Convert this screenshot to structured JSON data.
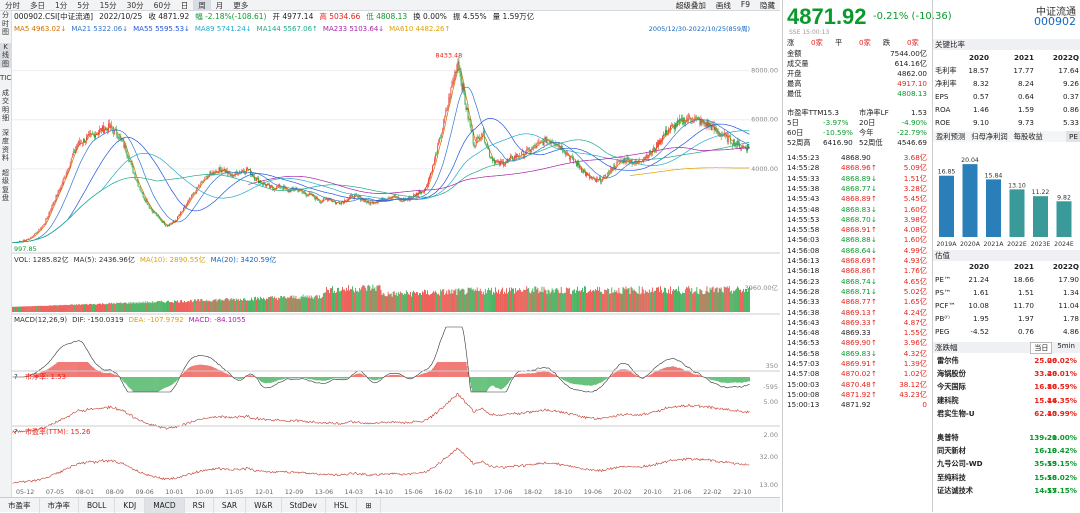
{
  "toolbar": {
    "periods": [
      "分时",
      "多日",
      "1分",
      "5分",
      "15分",
      "30分",
      "60分",
      "日",
      "周",
      "月",
      "更多"
    ],
    "active": "周",
    "right": [
      "超级叠加",
      "画线",
      "F9",
      "隐藏"
    ]
  },
  "leftstrip": [
    "分时图",
    "K线图",
    "TICK",
    "成交明细",
    "深度资料",
    "超级复盘"
  ],
  "info": {
    "code": "000902.CSI[中证流通]",
    "date": "2022/10/25",
    "close": "收 4871.92",
    "chg": "幅 -2.18%(-108.61)",
    "open": "开 4977.14",
    "high": "高 5034.66",
    "low": "低 4808.13",
    "turnover": "换 0.00%",
    "amp": "振 4.55%",
    "vol": "量 1.59万亿"
  },
  "ma_legend": [
    {
      "t": "MA5 4963.02↓",
      "c": "#d07000"
    },
    {
      "t": "MA21 5322.06↓",
      "c": "#3377cc"
    },
    {
      "t": "MA55 5595.53↓",
      "c": "#2255dd"
    },
    {
      "t": "MA89 5741.24↓",
      "c": "#22aacc"
    },
    {
      "t": "MA144 5567.06↑",
      "c": "#22aa88"
    },
    {
      "t": "MA233 5103.64↓",
      "c": "#aa22aa"
    },
    {
      "t": "MA610 4482.26↑",
      "c": "#e0a000"
    }
  ],
  "range_label": "2005/12/30-2022/10/25(859周)",
  "chart_data": [
    {
      "type": "candlestick",
      "title": "中证流通 周K",
      "high_label": "8433.48",
      "low_label": "997.85",
      "ylim": [
        700,
        9000
      ],
      "yticks": [
        "8000.00",
        "6000.00",
        "4000.00"
      ],
      "x_ticks": [
        "05-12",
        "07-05",
        "08-01",
        "08-09",
        "09-06",
        "10-01",
        "10-09",
        "11-05",
        "12-01",
        "12-09",
        "13-06",
        "14-03",
        "14-10",
        "15-06",
        "16-02",
        "16-10",
        "17-06",
        "18-02",
        "18-10",
        "19-06",
        "20-02",
        "20-10",
        "21-06",
        "22-02",
        "22-10"
      ],
      "close_path": [
        1000,
        1050,
        1150,
        1400,
        1800,
        2600,
        3300,
        4200,
        5000,
        5200,
        5400,
        5600,
        5700,
        5400,
        4800,
        3800,
        3000,
        2400,
        2000,
        1700,
        1850,
        2300,
        2800,
        3300,
        3700,
        3900,
        4000,
        3700,
        3900,
        4000,
        3600,
        3400,
        3200,
        3300,
        3100,
        3200,
        3000,
        2900,
        2700,
        2800,
        2600,
        2700,
        2900,
        2800,
        2600,
        2700,
        2800,
        2900,
        2700,
        2800,
        3000,
        3200,
        4200,
        5500,
        7000,
        8433,
        6500,
        5000,
        5500,
        4500,
        4200,
        4300,
        4500,
        4600,
        4800,
        5000,
        5200,
        5100,
        4800,
        4400,
        4100,
        3700,
        3500,
        3600,
        4000,
        4300,
        4400,
        4200,
        4500,
        4700,
        5200,
        5600,
        5800,
        6000,
        6100,
        5900,
        5800,
        5500,
        5300,
        5100,
        4900,
        4871
      ]
    },
    {
      "type": "volume",
      "label": "VOL: 1285.82亿",
      "ma5": "MA(5): 2436.96亿",
      "ma10": "MA(10): 2890.55亿",
      "ma20": "MA(20): 3420.59亿",
      "ytick": "3960.00亿"
    },
    {
      "type": "macd",
      "label": "MACD(12,26,9)",
      "dif": "DIF: -150.0319",
      "dea": "DEA: -107.9792",
      "macd": "MACD: -84.1055",
      "yticks": [
        "350",
        "-595"
      ]
    },
    {
      "type": "line",
      "label": "市净率: 1.53",
      "yticks": [
        "5.00",
        "2.00"
      ]
    },
    {
      "type": "line",
      "label": "市盈率(TTM): 15.26",
      "yticks": [
        "32.00",
        "13.00"
      ]
    }
  ],
  "bottom_tabs": [
    "市盈率",
    "市净率",
    "BOLL",
    "KDJ",
    "MACD",
    "RSI",
    "SAR",
    "W&R",
    "StdDev",
    "HSL",
    "⊞"
  ],
  "bottom_active": "MACD",
  "quote": {
    "price": "4871.92",
    "chg": "-0.21% (-10.36)",
    "sse": "SSE 15:00:13",
    "hdr": [
      "涨",
      "0家",
      "平",
      "0家",
      "跌",
      "0家"
    ],
    "kv": [
      [
        "金额",
        "7544.00亿"
      ],
      [
        "成交量",
        "614.16亿"
      ],
      [
        "开盘",
        "4862.00"
      ],
      [
        "最高",
        "4917.10"
      ],
      [
        "最低",
        "4808.13"
      ]
    ],
    "pe": "15.3",
    "pb": "1.53",
    "grid": [
      [
        "市盈率TTM",
        "15.3",
        "市净率LF",
        "1.53"
      ],
      [
        "5日",
        "-3.97%",
        "20日",
        "-4.90%"
      ],
      [
        "60日",
        "-10.59%",
        "今年",
        "-22.79%"
      ],
      [
        "52周高",
        "6416.90",
        "52周低",
        "4546.69"
      ]
    ],
    "ticks": [
      [
        "14:55:23",
        "4868.90",
        "3.68亿"
      ],
      [
        "14:55:28",
        "4868.96↑",
        "5.09亿"
      ],
      [
        "14:55:33",
        "4868.89↓",
        "1.51亿"
      ],
      [
        "14:55:38",
        "4868.77↓",
        "3.28亿"
      ],
      [
        "14:55:43",
        "4868.89↑",
        "5.45亿"
      ],
      [
        "14:55:48",
        "4868.83↓",
        "1.60亿"
      ],
      [
        "14:55:53",
        "4868.70↓",
        "3.98亿"
      ],
      [
        "14:55:58",
        "4868.91↑",
        "4.08亿"
      ],
      [
        "14:56:03",
        "4868.88↓",
        "1.60亿"
      ],
      [
        "14:56:08",
        "4868.64↓",
        "4.99亿"
      ],
      [
        "14:56:13",
        "4868.69↑",
        "4.93亿"
      ],
      [
        "14:56:18",
        "4868.86↑",
        "1.76亿"
      ],
      [
        "14:56:23",
        "4868.74↓",
        "4.65亿"
      ],
      [
        "14:56:28",
        "4868.71↓",
        "5.02亿"
      ],
      [
        "14:56:33",
        "4868.77↑",
        "1.65亿"
      ],
      [
        "14:56:38",
        "4869.13↑",
        "4.24亿"
      ],
      [
        "14:56:43",
        "4869.33↑",
        "4.87亿"
      ],
      [
        "14:56:48",
        "4869.33",
        "1.55亿"
      ],
      [
        "14:56:53",
        "4869.90↑",
        "3.96亿"
      ],
      [
        "14:56:58",
        "4869.83↓",
        "4.32亿"
      ],
      [
        "14:57:03",
        "4869.91↑",
        "1.39亿"
      ],
      [
        "14:57:08",
        "4870.02↑",
        "1.02亿"
      ],
      [
        "15:00:03",
        "4870.48↑",
        "38.12亿"
      ],
      [
        "15:00:08",
        "4871.92↑",
        "43.23亿"
      ],
      [
        "15:00:13",
        "4871.92",
        "0"
      ]
    ]
  },
  "fund": {
    "title": "中证流通",
    "code": "000902",
    "key_title": "关键比率",
    "years": [
      "2020",
      "2021",
      "2022Q"
    ],
    "key": [
      [
        "毛利率",
        "18.57",
        "17.77",
        "17.64"
      ],
      [
        "净利率",
        "8.32",
        "8.24",
        "9.26"
      ],
      [
        "EPS",
        "0.57",
        "0.64",
        "0.37"
      ],
      [
        "ROA",
        "1.46",
        "1.59",
        "0.86"
      ],
      [
        "ROE",
        "9.10",
        "9.73",
        "5.33"
      ]
    ],
    "tabs": [
      "盈利预测",
      "归母净利润",
      "每股收益",
      "PE"
    ],
    "profit": {
      "labels": [
        "2019A",
        "2020A",
        "2021A",
        "2022E",
        "2023E",
        "2024E"
      ],
      "values": [
        16.85,
        20.04,
        15.84,
        13.1,
        11.22,
        9.82
      ],
      "display": [
        "16.85",
        "20.04",
        "15.84",
        "13.10",
        "11.22",
        "9.82"
      ]
    },
    "val_title": "估值",
    "val_years": [
      "2020",
      "2021",
      "2022Q"
    ],
    "val": [
      [
        "PE™",
        "21.24",
        "18.66",
        "17.90"
      ],
      [
        "PS™",
        "1.61",
        "1.51",
        "1.34"
      ],
      [
        "PCF™",
        "10.08",
        "11.70",
        "11.04"
      ],
      [
        "PB⁽ᶠ⁾",
        "1.95",
        "1.97",
        "1.78"
      ],
      [
        "PEG",
        "-4.52",
        "0.76",
        "4.86"
      ]
    ],
    "gain_title": "涨跌幅",
    "gain_tabs": [
      "当日",
      "5min"
    ],
    "gainers": [
      [
        "雷尔伟",
        "25.06",
        "20.02%"
      ],
      [
        "海锅股份",
        "33.46",
        "20.01%"
      ],
      [
        "今天国际",
        "16.80",
        "16.59%"
      ],
      [
        "建科院",
        "15.44",
        "16.35%"
      ],
      [
        "君实生物-U",
        "62.40",
        "15.99%"
      ]
    ],
    "losers": [
      [
        "奥普特",
        "139.21",
        "-20.00%"
      ],
      [
        "同天新材",
        "16.10",
        "-19.42%"
      ],
      [
        "九号公司-WD",
        "35.55",
        "-19.15%"
      ],
      [
        "至纯科技",
        "15.58",
        "-16.02%"
      ],
      [
        "证达诚技术",
        "14.57",
        "-15.15%"
      ]
    ]
  }
}
